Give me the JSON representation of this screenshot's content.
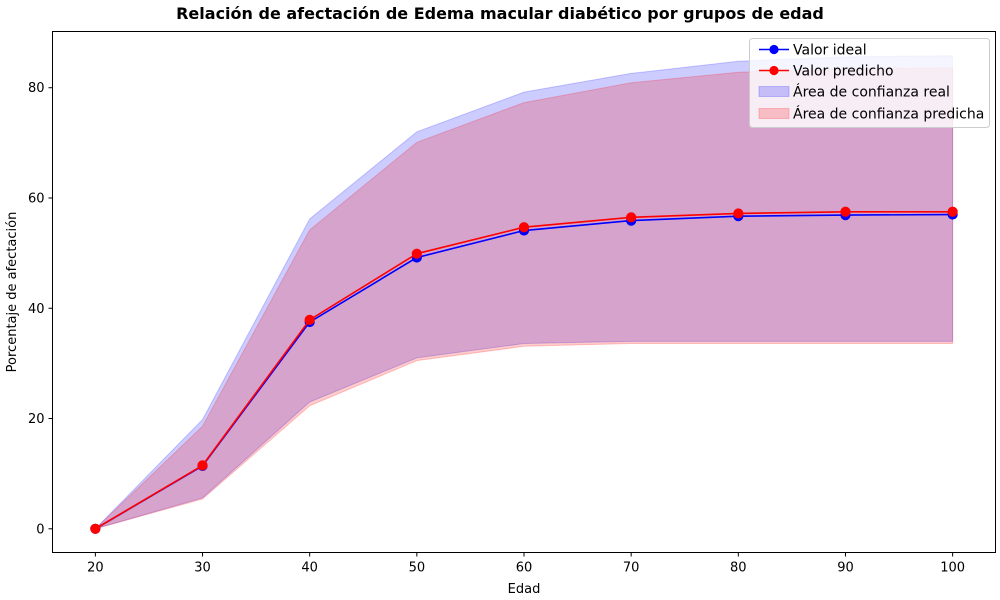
{
  "chart_data": {
    "type": "line",
    "title": "Relación de afectación de Edema macular diabético por grupos de edad",
    "xlabel": "Edad",
    "ylabel": "Porcentaje de afectación",
    "x": [
      20,
      30,
      40,
      50,
      60,
      70,
      80,
      90,
      100
    ],
    "xticks": [
      20,
      30,
      40,
      50,
      60,
      70,
      80,
      90,
      100
    ],
    "yticks": [
      0,
      20,
      40,
      60,
      80
    ],
    "xlim": [
      16,
      104
    ],
    "ylim": [
      -4.3,
      90.2
    ],
    "grid": false,
    "legend_position": "top-right",
    "series": [
      {
        "name": "Valor ideal",
        "color": "#0000ff",
        "marker": "circle",
        "values": [
          0,
          11.4,
          37.5,
          49.2,
          54.1,
          55.9,
          56.7,
          56.9,
          57.0
        ]
      },
      {
        "name": "Valor predicho",
        "color": "#ff0000",
        "marker": "circle",
        "values": [
          0,
          11.5,
          37.9,
          49.9,
          54.7,
          56.5,
          57.2,
          57.5,
          57.5
        ]
      }
    ],
    "bands": [
      {
        "name": "Área de confianza real",
        "color": "#0000ff",
        "opacity": 0.2,
        "lower": [
          0,
          5.6,
          23.0,
          31.0,
          33.6,
          34.0,
          34.0,
          34.0,
          34.0
        ],
        "upper": [
          0,
          19.8,
          56.2,
          72.0,
          79.2,
          82.6,
          84.8,
          85.6,
          85.8
        ]
      },
      {
        "name": "Área de confianza predicha",
        "color": "#ff0000",
        "opacity": 0.2,
        "lower": [
          0,
          5.4,
          22.3,
          30.5,
          33.1,
          33.6,
          33.6,
          33.6,
          33.6
        ],
        "upper": [
          0,
          18.6,
          54.2,
          70.1,
          77.3,
          80.9,
          82.8,
          83.4,
          83.6
        ]
      }
    ]
  }
}
